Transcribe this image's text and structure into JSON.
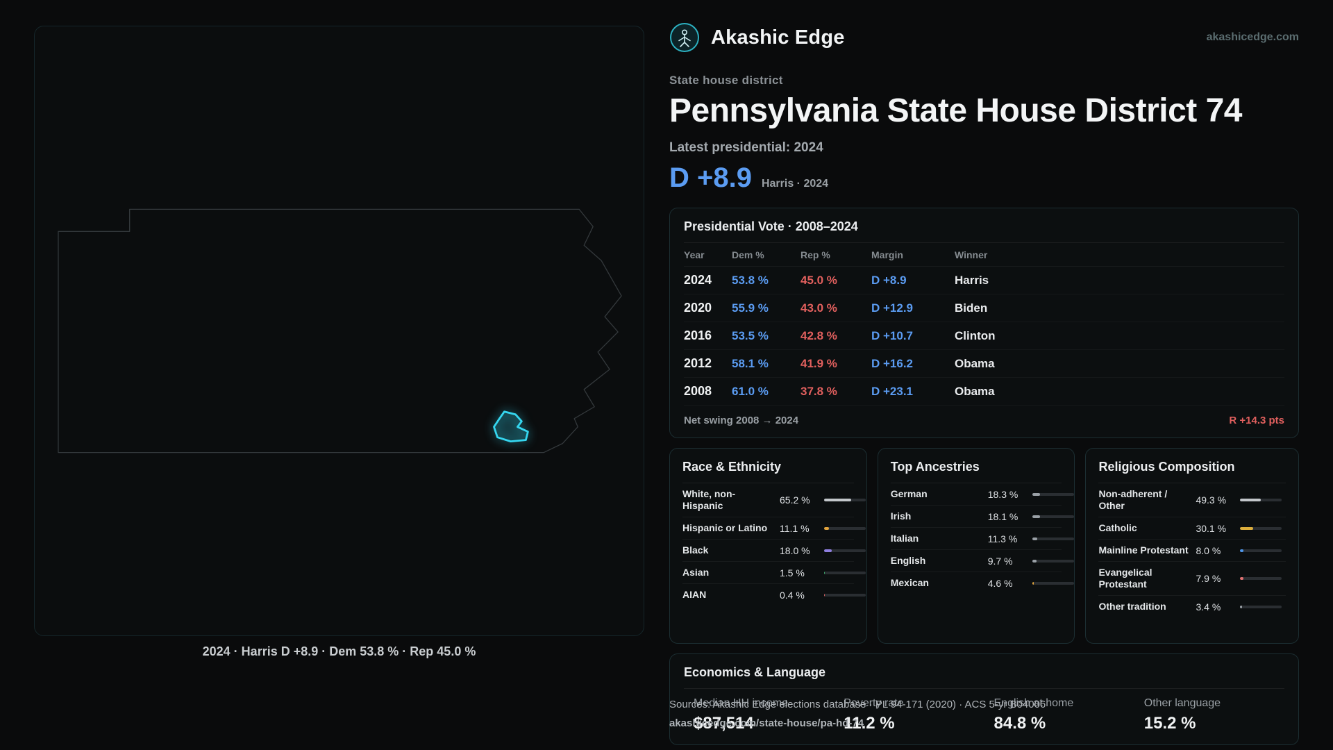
{
  "colors": {
    "dem": "#5b9cf2",
    "rep": "#e2605e",
    "accent": "#35d6ef",
    "brand": "#2cb0c0"
  },
  "brand": {
    "name": "Akashic Edge",
    "domain": "akashicedge.com"
  },
  "page": {
    "kicker": "State house district",
    "title": "Pennsylvania State House District 74",
    "latest_label": "Latest presidential: 2024",
    "headline_margin": "D +8.9",
    "headline_note": "Harris · 2024"
  },
  "map": {
    "caption": "2024 · Harris D +8.9 · Dem 53.8 % · Rep 45.0 %"
  },
  "presidential": {
    "title": "Presidential Vote · 2008–2024",
    "columns": [
      "Year",
      "Dem %",
      "Rep %",
      "Margin",
      "Winner"
    ],
    "rows": [
      {
        "year": "2024",
        "dem": "53.8 %",
        "rep": "45.0 %",
        "margin": "D +8.9",
        "winner": "Harris"
      },
      {
        "year": "2020",
        "dem": "55.9 %",
        "rep": "43.0 %",
        "margin": "D +12.9",
        "winner": "Biden"
      },
      {
        "year": "2016",
        "dem": "53.5 %",
        "rep": "42.8 %",
        "margin": "D +10.7",
        "winner": "Clinton"
      },
      {
        "year": "2012",
        "dem": "58.1 %",
        "rep": "41.9 %",
        "margin": "D +16.2",
        "winner": "Obama"
      },
      {
        "year": "2008",
        "dem": "61.0 %",
        "rep": "37.8 %",
        "margin": "D +23.1",
        "winner": "Obama"
      }
    ],
    "net_swing_label": "Net swing 2008 → 2024",
    "net_swing_value": "R +14.3 pts"
  },
  "race": {
    "title": "Race & Ethnicity",
    "rows": [
      {
        "label": "White, non-Hispanic",
        "value": "65.2 %",
        "pct": 65.2,
        "color": "#c3c7cb"
      },
      {
        "label": "Hispanic or Latino",
        "value": "11.1 %",
        "pct": 11.1,
        "color": "#e2a43c"
      },
      {
        "label": "Black",
        "value": "18.0 %",
        "pct": 18.0,
        "color": "#8f7fe0"
      },
      {
        "label": "Asian",
        "value": "1.5 %",
        "pct": 1.5,
        "color": "#3faf6f"
      },
      {
        "label": "AIAN",
        "value": "0.4 %",
        "pct": 0.4,
        "color": "#d96060"
      }
    ]
  },
  "ancestries": {
    "title": "Top Ancestries",
    "rows": [
      {
        "label": "German",
        "value": "18.3 %",
        "pct": 18.3,
        "color": "#9aa0a6"
      },
      {
        "label": "Irish",
        "value": "18.1 %",
        "pct": 18.1,
        "color": "#9aa0a6"
      },
      {
        "label": "Italian",
        "value": "11.3 %",
        "pct": 11.3,
        "color": "#9aa0a6"
      },
      {
        "label": "English",
        "value": "9.7 %",
        "pct": 9.7,
        "color": "#9aa0a6"
      },
      {
        "label": "Mexican",
        "value": "4.6 %",
        "pct": 4.6,
        "color": "#e2a43c"
      }
    ]
  },
  "religion": {
    "title": "Religious Composition",
    "rows": [
      {
        "label": "Non-adherent / Other",
        "value": "49.3 %",
        "pct": 49.3,
        "color": "#c3c7cb"
      },
      {
        "label": "Catholic",
        "value": "30.1 %",
        "pct": 30.1,
        "color": "#dcae3c"
      },
      {
        "label": "Mainline Protestant",
        "value": "8.0 %",
        "pct": 8.0,
        "color": "#4e96ea"
      },
      {
        "label": "Evangelical Protestant",
        "value": "7.9 %",
        "pct": 7.9,
        "color": "#e07070"
      },
      {
        "label": "Other tradition",
        "value": "3.4 %",
        "pct": 3.4,
        "color": "#9aa0a6"
      }
    ]
  },
  "economics": {
    "title": "Economics & Language",
    "stats": [
      {
        "label": "Median HH income",
        "value": "$87,514"
      },
      {
        "label": "Poverty rate",
        "value": "11.2 %"
      },
      {
        "label": "English at home",
        "value": "84.8 %"
      },
      {
        "label": "Other language",
        "value": "15.2 %"
      }
    ]
  },
  "footer": {
    "sources": "Sources: Akashic Edge elections database · PL 94-171 (2020) · ACS 5-yr B04006",
    "permalink": "akashicedge.com/state-house/pa-hd-74"
  }
}
